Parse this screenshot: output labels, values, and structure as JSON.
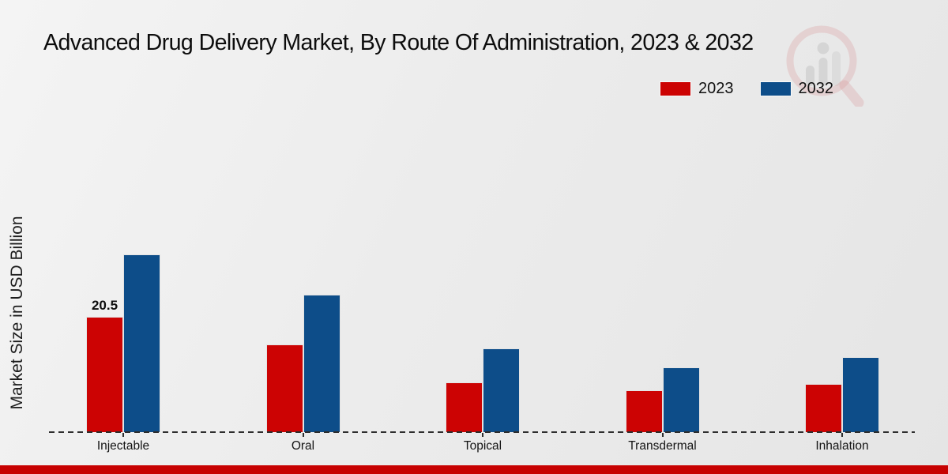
{
  "title": "Advanced Drug Delivery Market, By Route Of Administration, 2023 & 2032",
  "colors": {
    "bar_red": "#cc0303",
    "bar_blue": "#0d4d89",
    "bottom_band": "#c70101",
    "background": "#ececec",
    "axis": "#2e2e2e"
  },
  "legend": {
    "items": [
      {
        "label": "2023",
        "color": "#cc0303"
      },
      {
        "label": "2032",
        "color": "#0d4d89"
      }
    ]
  },
  "watermark_icon": "magnifier-bar-chart-logo",
  "chart_data": {
    "type": "bar",
    "title": "Advanced Drug Delivery Market, By Route Of Administration, 2023 & 2032",
    "ylabel": "Market Size in USD Billion",
    "xlabel": "",
    "categories": [
      "Injectable",
      "Oral",
      "Topical",
      "Transdermal",
      "Inhalation"
    ],
    "series": [
      {
        "name": "2023",
        "color": "#cc0303",
        "values": [
          20.5,
          15.6,
          8.8,
          7.4,
          8.5
        ],
        "data_labels": [
          "20.5",
          "",
          "",
          "",
          ""
        ]
      },
      {
        "name": "2032",
        "color": "#0d4d89",
        "values": [
          31.6,
          24.4,
          14.9,
          11.5,
          13.4
        ],
        "data_labels": [
          "",
          "",
          "",
          "",
          ""
        ]
      }
    ],
    "ylim": [
      0,
      35
    ],
    "grid": false,
    "legend_position": "top-right",
    "x_axis_style": "dashed",
    "y_axis_ticks_visible": false
  }
}
